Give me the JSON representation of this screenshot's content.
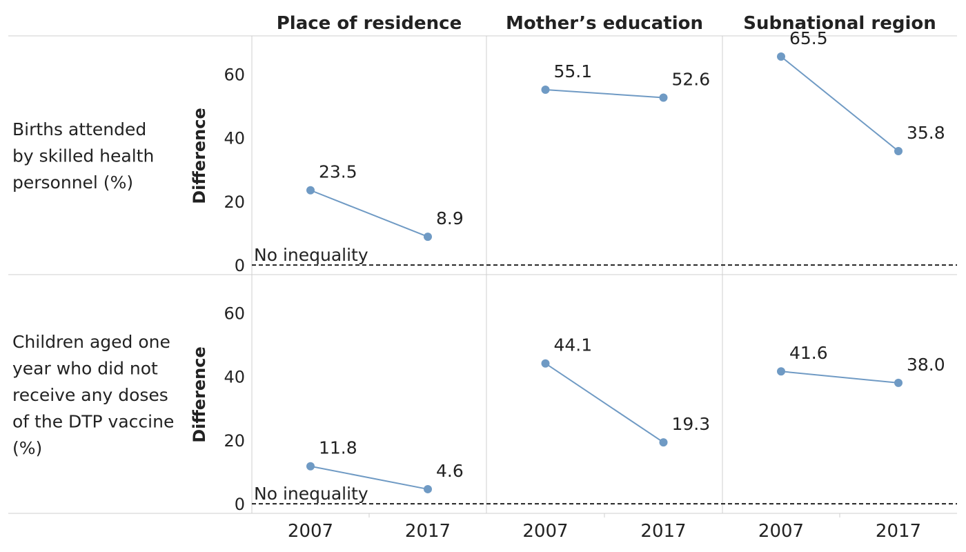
{
  "chart_data": {
    "type": "line",
    "columns": [
      "Place of residence",
      "Mother’s education",
      "Subnational region"
    ],
    "rows": [
      "Births attended by skilled health personnel (%)",
      "Children aged one year who did not receive any doses of the DTP vaccine (%)"
    ],
    "row_label_lines": [
      [
        "Births attended",
        "by skilled health",
        "personnel (%)"
      ],
      [
        "Children aged one",
        "year who did not",
        "receive any doses",
        "of the DTP vaccine",
        "(%)"
      ]
    ],
    "x": [
      "2007",
      "2017"
    ],
    "ylabel": "Difference",
    "yticks": [
      "0",
      "20",
      "40",
      "60"
    ],
    "ylim": [
      -3,
      72
    ],
    "reference_line": {
      "value": 0,
      "label": "No inequality"
    },
    "line_color": "#6f9ac4",
    "panels": [
      {
        "row": 0,
        "col": 0,
        "values": [
          23.5,
          8.9
        ],
        "labels": [
          "23.5",
          "8.9"
        ]
      },
      {
        "row": 0,
        "col": 1,
        "values": [
          55.1,
          52.6
        ],
        "labels": [
          "55.1",
          "52.6"
        ]
      },
      {
        "row": 0,
        "col": 2,
        "values": [
          65.5,
          35.8
        ],
        "labels": [
          "65.5",
          "35.8"
        ]
      },
      {
        "row": 1,
        "col": 0,
        "values": [
          11.8,
          4.6
        ],
        "labels": [
          "11.8",
          "4.6"
        ]
      },
      {
        "row": 1,
        "col": 1,
        "values": [
          44.1,
          19.3
        ],
        "labels": [
          "44.1",
          "19.3"
        ]
      },
      {
        "row": 1,
        "col": 2,
        "values": [
          41.6,
          38.0
        ],
        "labels": [
          "41.6",
          "38.0"
        ]
      }
    ]
  }
}
